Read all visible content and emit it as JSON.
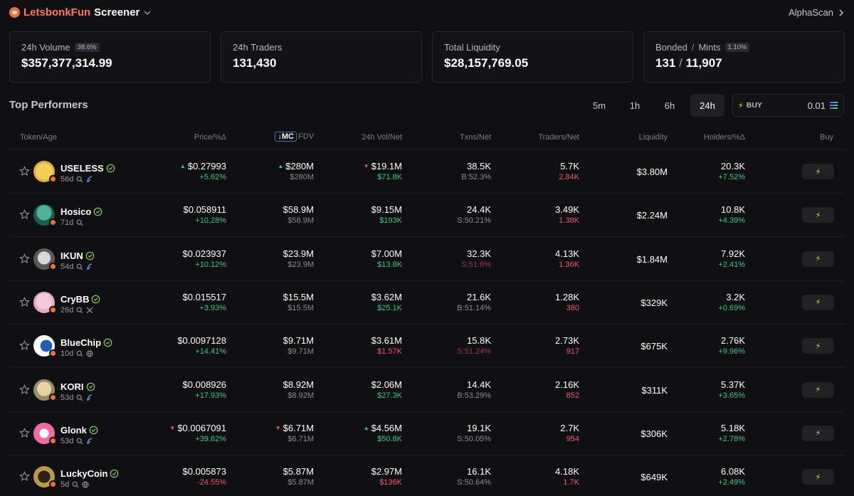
{
  "header": {
    "brand_name": "LetsbonkFun",
    "brand_sub": "Screener",
    "alpha_scan": "AlphaScan"
  },
  "stats": [
    {
      "label": "24h Volume",
      "badge": "38.6%",
      "value": "$357,377,314.99"
    },
    {
      "label": "24h Traders",
      "badge": "",
      "value": "131,430"
    },
    {
      "label": "Total Liquidity",
      "badge": "",
      "value": "$28,157,769.05"
    },
    {
      "label_a": "Bonded",
      "label_sep": "/",
      "label_b": "Mints",
      "badge": "1.10%",
      "value_a": "131",
      "value_sep": "/",
      "value_b": "11,907"
    }
  ],
  "section": {
    "title": "Top Performers",
    "timeframes": [
      "5m",
      "1h",
      "6h",
      "24h"
    ],
    "active_timeframe": "24h",
    "buy_label": "BUY",
    "buy_amount": "0.01"
  },
  "columns": {
    "token": "Token/Age",
    "price": "Price/%Δ",
    "mc": "MC",
    "fdv": "FDV",
    "vol": "24h Vol/Net",
    "txns": "Txns/Net",
    "traders": "Traders/Net",
    "liquidity": "Liquidity",
    "holders": "Holders/%Δ",
    "buy": "Buy"
  },
  "rows": [
    {
      "name": "USELESS",
      "age": "56d",
      "price": "$0.27993",
      "price_chg": "+5.62%",
      "mc": "$280M",
      "fdv": "$280M",
      "vol": "$19.1M",
      "vol_net": "$71.8K",
      "txns": "38.5K",
      "txns_net": "B:52.3%",
      "traders": "5.7K",
      "traders_net": "2.84K",
      "liquidity": "$3.80M",
      "holders": "20.3K",
      "holders_chg": "+7.52%"
    },
    {
      "name": "Hosico",
      "age": "71d",
      "price": "$0.058911",
      "price_chg": "+10.28%",
      "mc": "$58.9M",
      "fdv": "$58.9M",
      "vol": "$9.15M",
      "vol_net": "$193K",
      "txns": "24.4K",
      "txns_net": "S:50.21%",
      "traders": "3.49K",
      "traders_net": "1.38K",
      "liquidity": "$2.24M",
      "holders": "10.8K",
      "holders_chg": "+4.39%"
    },
    {
      "name": "IKUN",
      "age": "54d",
      "price": "$0.023937",
      "price_chg": "+10.12%",
      "mc": "$23.9M",
      "fdv": "$23.9M",
      "vol": "$7.00M",
      "vol_net": "$13.8K",
      "txns": "32.3K",
      "txns_net": "S:51.6%",
      "traders": "4.13K",
      "traders_net": "1.36K",
      "liquidity": "$1.84M",
      "holders": "7.92K",
      "holders_chg": "+2.41%"
    },
    {
      "name": "CryBB",
      "age": "26d",
      "price": "$0.015517",
      "price_chg": "+3.93%",
      "mc": "$15.5M",
      "fdv": "$15.5M",
      "vol": "$3.62M",
      "vol_net": "$25.1K",
      "txns": "21.6K",
      "txns_net": "B:51.14%",
      "traders": "1.28K",
      "traders_net": "380",
      "liquidity": "$329K",
      "holders": "3.2K",
      "holders_chg": "+0.69%"
    },
    {
      "name": "BlueChip",
      "age": "10d",
      "price": "$0.0097128",
      "price_chg": "+14.41%",
      "mc": "$9.71M",
      "fdv": "$9.71M",
      "vol": "$3.61M",
      "vol_net": "$1.57K",
      "txns": "15.8K",
      "txns_net": "S:51.24%",
      "traders": "2.73K",
      "traders_net": "917",
      "liquidity": "$675K",
      "holders": "2.76K",
      "holders_chg": "+9.96%"
    },
    {
      "name": "KORI",
      "age": "53d",
      "price": "$0.008926",
      "price_chg": "+17.93%",
      "mc": "$8.92M",
      "fdv": "$8.92M",
      "vol": "$2.06M",
      "vol_net": "$27.3K",
      "txns": "14.4K",
      "txns_net": "B:53.29%",
      "traders": "2.16K",
      "traders_net": "852",
      "liquidity": "$311K",
      "holders": "5.37K",
      "holders_chg": "+3.65%"
    },
    {
      "name": "Glonk",
      "age": "53d",
      "price": "$0.0067091",
      "price_chg": "+39.62%",
      "mc": "$6.71M",
      "fdv": "$6.71M",
      "vol": "$4.56M",
      "vol_net": "$50.8K",
      "txns": "19.1K",
      "txns_net": "S:50.05%",
      "traders": "2.7K",
      "traders_net": "954",
      "liquidity": "$306K",
      "holders": "5.18K",
      "holders_chg": "+2.78%"
    },
    {
      "name": "LuckyCoin",
      "age": "5d",
      "price": "$0.005873",
      "price_chg": "-24.55%",
      "mc": "$5.87M",
      "fdv": "$5.87M",
      "vol": "$2.97M",
      "vol_net": "$136K",
      "txns": "16.1K",
      "txns_net": "S:50.64%",
      "traders": "4.18K",
      "traders_net": "1.7K",
      "liquidity": "$649K",
      "holders": "6.08K",
      "holders_chg": "+2.49%"
    }
  ],
  "colors": {
    "background": "#101012",
    "positive": "#35c98a",
    "negative": "#f0557a",
    "brand": "#ff7a5c",
    "bolt": "#f3d34a"
  }
}
